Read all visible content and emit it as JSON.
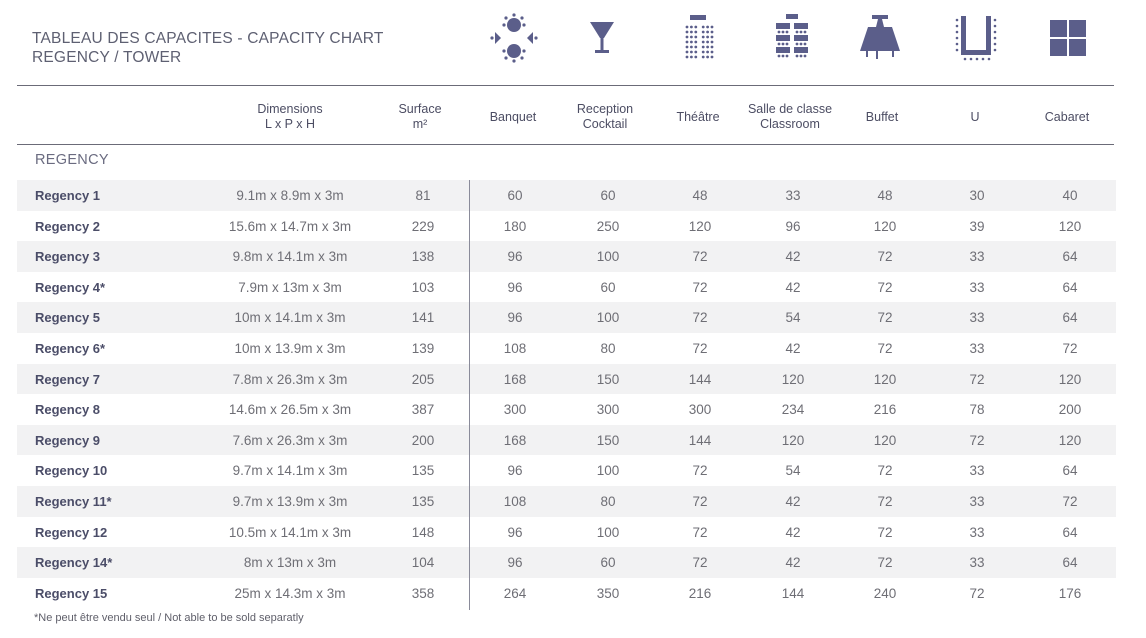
{
  "title": {
    "line1": "TABLEAU DES CAPACITES - CAPACITY CHART",
    "line2": "REGENCY / TOWER"
  },
  "icons": [
    {
      "name": "banquet-icon"
    },
    {
      "name": "cocktail-icon"
    },
    {
      "name": "theatre-icon"
    },
    {
      "name": "classroom-icon"
    },
    {
      "name": "buffet-icon"
    },
    {
      "name": "u-shape-icon"
    },
    {
      "name": "cabaret-icon"
    }
  ],
  "headers": {
    "dimensions": [
      "Dimensions",
      "L x P x H"
    ],
    "surface": [
      "Surface",
      "m²"
    ],
    "banquet": [
      "Banquet"
    ],
    "reception": [
      "Reception",
      "Cocktail"
    ],
    "theatre": [
      "Théâtre"
    ],
    "classroom": [
      "Salle de classe",
      "Classroom"
    ],
    "buffet": [
      "Buffet"
    ],
    "u": [
      "U"
    ],
    "cabaret": [
      "Cabaret"
    ]
  },
  "section": "REGENCY",
  "rows": [
    {
      "name": "Regency 1",
      "dim": "9.1m x 8.9m x 3m",
      "surface": "81",
      "banquet": "60",
      "reception": "60",
      "theatre": "48",
      "classroom": "33",
      "buffet": "48",
      "u": "30",
      "cabaret": "40"
    },
    {
      "name": "Regency 2",
      "dim": "15.6m x 14.7m x 3m",
      "surface": "229",
      "banquet": "180",
      "reception": "250",
      "theatre": "120",
      "classroom": "96",
      "buffet": "120",
      "u": "39",
      "cabaret": "120"
    },
    {
      "name": "Regency 3",
      "dim": "9.8m x 14.1m x 3m",
      "surface": "138",
      "banquet": "96",
      "reception": "100",
      "theatre": "72",
      "classroom": "42",
      "buffet": "72",
      "u": "33",
      "cabaret": "64"
    },
    {
      "name": "Regency 4*",
      "dim": "7.9m x 13m x 3m",
      "surface": "103",
      "banquet": "96",
      "reception": "60",
      "theatre": "72",
      "classroom": "42",
      "buffet": "72",
      "u": "33",
      "cabaret": "64"
    },
    {
      "name": "Regency 5",
      "dim": "10m x 14.1m x 3m",
      "surface": "141",
      "banquet": "96",
      "reception": "100",
      "theatre": "72",
      "classroom": "54",
      "buffet": "72",
      "u": "33",
      "cabaret": "64"
    },
    {
      "name": "Regency 6*",
      "dim": "10m x 13.9m x 3m",
      "surface": "139",
      "banquet": "108",
      "reception": "80",
      "theatre": "72",
      "classroom": "42",
      "buffet": "72",
      "u": "33",
      "cabaret": "72"
    },
    {
      "name": "Regency 7",
      "dim": "7.8m x 26.3m x 3m",
      "surface": "205",
      "banquet": "168",
      "reception": "150",
      "theatre": "144",
      "classroom": "120",
      "buffet": "120",
      "u": "72",
      "cabaret": "120"
    },
    {
      "name": "Regency 8",
      "dim": "14.6m x 26.5m x 3m",
      "surface": "387",
      "banquet": "300",
      "reception": "300",
      "theatre": "300",
      "classroom": "234",
      "buffet": "216",
      "u": "78",
      "cabaret": "200"
    },
    {
      "name": "Regency 9",
      "dim": "7.6m x 26.3m x 3m",
      "surface": "200",
      "banquet": "168",
      "reception": "150",
      "theatre": "144",
      "classroom": "120",
      "buffet": "120",
      "u": "72",
      "cabaret": "120"
    },
    {
      "name": "Regency 10",
      "dim": "9.7m x 14.1m x 3m",
      "surface": "135",
      "banquet": "96",
      "reception": "100",
      "theatre": "72",
      "classroom": "54",
      "buffet": "72",
      "u": "33",
      "cabaret": "64"
    },
    {
      "name": "Regency 11*",
      "dim": "9.7m x 13.9m x 3m",
      "surface": "135",
      "banquet": "108",
      "reception": "80",
      "theatre": "72",
      "classroom": "42",
      "buffet": "72",
      "u": "33",
      "cabaret": "72"
    },
    {
      "name": "Regency 12",
      "dim": "10.5m x 14.1m x 3m",
      "surface": "148",
      "banquet": "96",
      "reception": "100",
      "theatre": "72",
      "classroom": "42",
      "buffet": "72",
      "u": "33",
      "cabaret": "64"
    },
    {
      "name": "Regency 14*",
      "dim": "8m x 13m x 3m",
      "surface": "104",
      "banquet": "96",
      "reception": "60",
      "theatre": "72",
      "classroom": "42",
      "buffet": "72",
      "u": "33",
      "cabaret": "64"
    },
    {
      "name": "Regency 15",
      "dim": "25m x 14.3m x 3m",
      "surface": "358",
      "banquet": "264",
      "reception": "350",
      "theatre": "216",
      "classroom": "144",
      "buffet": "240",
      "u": "72",
      "cabaret": "176"
    }
  ],
  "footnote": "*Ne peut être vendu seul / Not able to be sold separatly",
  "colors": {
    "icon": "#5b5e8a",
    "text": "#4b4d68",
    "shade": "#f2f2f3",
    "rule": "#6b6b78"
  }
}
